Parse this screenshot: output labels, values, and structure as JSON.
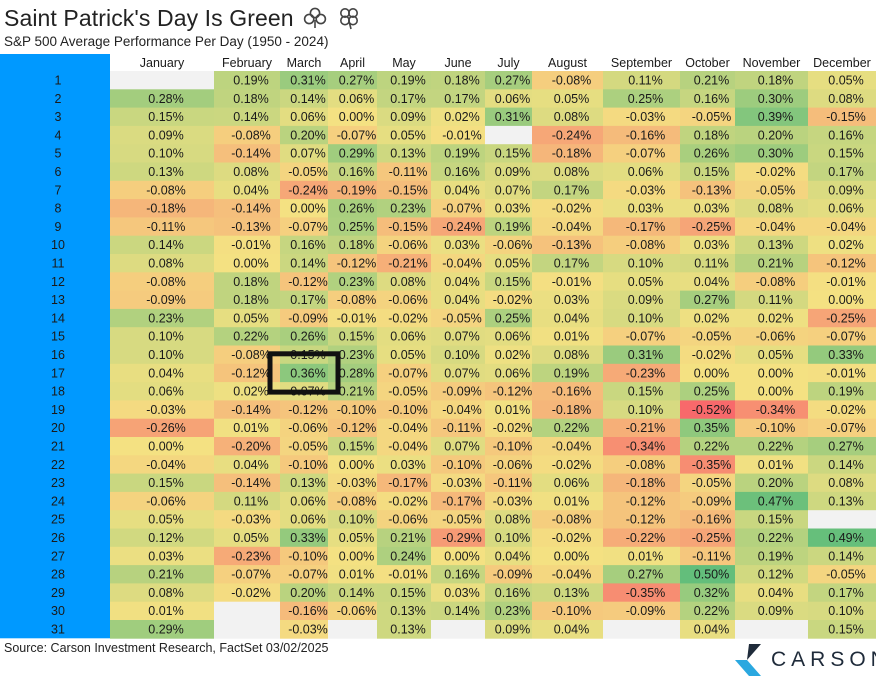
{
  "header": {
    "title": "Saint Patrick's Day Is Green",
    "subtitle": "S&P 500 Average Performance Per Day (1950 - 2024)"
  },
  "footer": {
    "source": "Source: Carson Investment Research, FactSet 03/02/2025",
    "brand": "CARSON"
  },
  "colors": {
    "row_band": "#0099ff",
    "strong_green": "#63be7b",
    "neutral_yellow": "#f4e182",
    "strong_red": "#f8696b",
    "missing": "#f2f2f2",
    "highlight_box": "#111111"
  },
  "chart_data": {
    "type": "heatmap",
    "title": "Saint Patrick's Day Is Green",
    "subtitle": "S&P 500 Average Performance Per Day (1950 - 2024)",
    "x_categories": [
      "January",
      "February",
      "March",
      "April",
      "May",
      "June",
      "July",
      "August",
      "September",
      "October",
      "November",
      "December"
    ],
    "y_categories": [
      1,
      2,
      3,
      4,
      5,
      6,
      7,
      8,
      9,
      10,
      11,
      12,
      13,
      14,
      15,
      16,
      17,
      18,
      19,
      20,
      21,
      22,
      23,
      24,
      25,
      26,
      27,
      28,
      29,
      30,
      31
    ],
    "unit": "%",
    "color_scale": [
      "#f8696b",
      "#f4e182",
      "#63be7b"
    ],
    "highlight": {
      "month": "March",
      "day": 17,
      "value": 0.36
    },
    "values": [
      [
        null,
        0.19,
        0.31,
        0.27,
        0.19,
        0.18,
        0.27,
        -0.08,
        0.11,
        0.21,
        0.18,
        0.05
      ],
      [
        0.28,
        0.18,
        0.14,
        0.06,
        0.17,
        0.17,
        0.06,
        0.05,
        0.25,
        0.16,
        0.3,
        0.08
      ],
      [
        0.15,
        0.14,
        0.06,
        0.0,
        0.09,
        0.02,
        0.31,
        0.08,
        -0.03,
        -0.05,
        0.39,
        -0.15
      ],
      [
        0.09,
        -0.08,
        0.2,
        -0.07,
        0.05,
        -0.01,
        null,
        -0.24,
        -0.16,
        0.18,
        0.2,
        0.16
      ],
      [
        0.1,
        -0.14,
        0.07,
        0.29,
        0.13,
        0.19,
        0.15,
        -0.18,
        -0.07,
        0.26,
        0.3,
        0.15
      ],
      [
        0.13,
        0.08,
        -0.05,
        0.16,
        -0.11,
        0.16,
        0.09,
        0.08,
        0.06,
        0.15,
        -0.02,
        0.17
      ],
      [
        -0.08,
        0.04,
        -0.24,
        -0.19,
        -0.15,
        0.04,
        0.07,
        0.17,
        -0.03,
        -0.13,
        -0.05,
        0.09
      ],
      [
        -0.18,
        -0.14,
        0.0,
        0.26,
        0.23,
        -0.07,
        0.03,
        -0.02,
        0.03,
        0.03,
        0.08,
        0.06
      ],
      [
        -0.11,
        -0.13,
        -0.07,
        0.25,
        -0.15,
        -0.24,
        0.19,
        -0.04,
        -0.17,
        -0.25,
        -0.04,
        -0.04
      ],
      [
        0.14,
        -0.01,
        0.16,
        0.18,
        -0.06,
        0.03,
        -0.06,
        -0.13,
        -0.08,
        0.03,
        0.13,
        0.02
      ],
      [
        0.08,
        0.0,
        0.14,
        -0.12,
        -0.21,
        -0.04,
        0.05,
        0.17,
        0.1,
        0.11,
        0.21,
        -0.12
      ],
      [
        -0.08,
        0.18,
        -0.12,
        0.23,
        0.08,
        0.04,
        0.15,
        -0.01,
        0.05,
        0.04,
        -0.08,
        -0.01
      ],
      [
        -0.09,
        0.18,
        0.17,
        -0.08,
        -0.06,
        0.04,
        -0.02,
        0.03,
        0.09,
        0.27,
        0.11,
        0.0
      ],
      [
        0.23,
        0.05,
        -0.09,
        -0.01,
        -0.02,
        -0.05,
        0.25,
        0.04,
        0.1,
        0.02,
        0.02,
        -0.25
      ],
      [
        0.1,
        0.22,
        0.26,
        0.15,
        0.06,
        0.07,
        0.06,
        0.01,
        -0.07,
        -0.05,
        -0.06,
        -0.07
      ],
      [
        0.1,
        -0.08,
        0.15,
        0.23,
        0.05,
        0.1,
        0.02,
        0.08,
        0.31,
        -0.02,
        0.05,
        0.33
      ],
      [
        0.04,
        -0.12,
        0.36,
        0.28,
        -0.07,
        0.07,
        0.06,
        0.19,
        -0.23,
        0.0,
        0.0,
        -0.01
      ],
      [
        0.06,
        0.02,
        0.07,
        0.21,
        -0.05,
        -0.09,
        -0.12,
        -0.16,
        0.15,
        0.25,
        0.0,
        0.19
      ],
      [
        -0.03,
        -0.14,
        -0.12,
        -0.1,
        -0.1,
        -0.04,
        0.01,
        -0.18,
        0.1,
        -0.52,
        -0.34,
        -0.02
      ],
      [
        -0.26,
        0.01,
        -0.06,
        -0.12,
        -0.04,
        -0.11,
        -0.02,
        0.22,
        -0.21,
        0.35,
        -0.1,
        -0.07
      ],
      [
        0.0,
        -0.2,
        -0.05,
        0.15,
        -0.04,
        0.07,
        -0.1,
        -0.04,
        -0.34,
        0.22,
        0.22,
        0.27
      ],
      [
        -0.04,
        0.04,
        -0.1,
        0.0,
        0.03,
        -0.1,
        -0.06,
        -0.02,
        -0.08,
        -0.35,
        0.01,
        0.14
      ],
      [
        0.15,
        -0.14,
        0.13,
        -0.03,
        -0.17,
        -0.03,
        -0.11,
        0.06,
        -0.18,
        -0.05,
        0.2,
        0.08
      ],
      [
        -0.06,
        0.11,
        0.06,
        -0.08,
        -0.02,
        -0.17,
        -0.03,
        0.01,
        -0.12,
        -0.09,
        0.47,
        0.13
      ],
      [
        0.05,
        -0.03,
        0.06,
        0.1,
        -0.06,
        -0.05,
        0.08,
        -0.08,
        -0.12,
        -0.16,
        0.15,
        null
      ],
      [
        0.12,
        0.05,
        0.33,
        0.05,
        0.21,
        -0.29,
        0.1,
        -0.02,
        -0.22,
        -0.25,
        0.22,
        0.49
      ],
      [
        0.03,
        -0.23,
        -0.1,
        0.0,
        0.24,
        0.0,
        0.04,
        0.0,
        0.01,
        -0.11,
        0.19,
        0.14
      ],
      [
        0.21,
        -0.07,
        -0.07,
        0.01,
        -0.01,
        0.16,
        -0.09,
        -0.04,
        0.27,
        0.5,
        0.12,
        -0.05
      ],
      [
        0.08,
        -0.02,
        0.2,
        0.14,
        0.15,
        0.03,
        0.16,
        0.13,
        -0.35,
        0.32,
        0.04,
        0.17
      ],
      [
        0.01,
        null,
        -0.16,
        -0.06,
        0.13,
        0.14,
        0.23,
        -0.1,
        -0.09,
        0.22,
        0.09,
        0.1
      ],
      [
        0.29,
        null,
        -0.03,
        null,
        0.13,
        null,
        0.09,
        0.04,
        null,
        0.04,
        null,
        0.15
      ]
    ]
  }
}
